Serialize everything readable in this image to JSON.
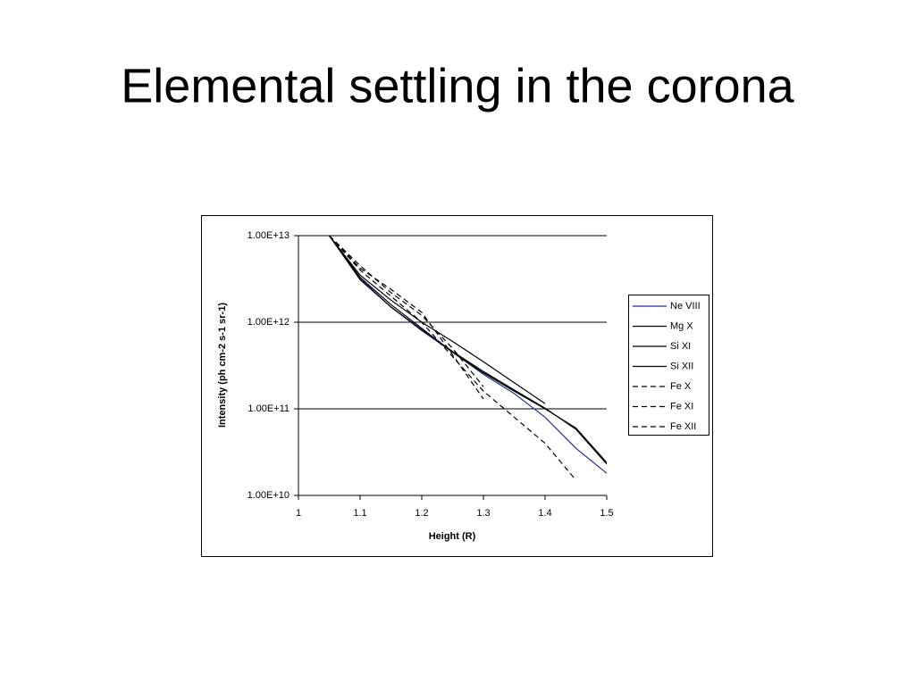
{
  "chart_data": {
    "type": "line",
    "title": "Elemental settling in the corona",
    "x_label": "Height (R)",
    "y_label": "Intensity (ph cm-2 s-1 sr-1)",
    "x": [
      1.05,
      1.1,
      1.15,
      1.2,
      1.25,
      1.3,
      1.35,
      1.4,
      1.45,
      1.5
    ],
    "series": [
      {
        "name": "Ne VIII",
        "color": "#1f2f9f",
        "linestyle": "solid",
        "values": [
          10000000000000.0,
          3200000000000.0,
          1500000000000.0,
          800000000000.0,
          450000000000.0,
          250000000000.0,
          150000000000.0,
          80000000000.0,
          35000000000.0,
          18000000000.0
        ]
      },
      {
        "name": "Mg X",
        "color": "#000000",
        "linestyle": "solid",
        "values": [
          10000000000000.0,
          3300000000000.0,
          1600000000000.0,
          850000000000.0,
          450000000000.0,
          260000000000.0,
          160000000000.0,
          100000000000.0,
          60000000000.0,
          24000000000.0
        ]
      },
      {
        "name": "Si XI",
        "color": "#000000",
        "linestyle": "solid",
        "values": [
          10000000000000.0,
          3100000000000.0,
          1500000000000.0,
          820000000000.0,
          460000000000.0,
          270000000000.0,
          165000000000.0,
          102000000000.0,
          58000000000.0,
          23000000000.0
        ]
      },
      {
        "name": "Si XII",
        "color": "#000000",
        "linestyle": "solid",
        "values": [
          10000000000000.0,
          3500000000000.0,
          1800000000000.0,
          1000000000000.0,
          600000000000.0,
          350000000000.0,
          200000000000.0,
          115000000000.0,
          null,
          null
        ]
      },
      {
        "name": "Fe X",
        "color": "#000000",
        "linestyle": "dashed",
        "values": [
          10000000000000.0,
          4000000000000.0,
          2000000000000.0,
          1000000000000.0,
          400000000000.0,
          160000000000.0,
          80000000000.0,
          40000000000.0,
          15000000000.0,
          null
        ]
      },
      {
        "name": "Fe XI",
        "color": "#000000",
        "linestyle": "dashed",
        "values": [
          10000000000000.0,
          4500000000000.0,
          2200000000000.0,
          1200000000000.0,
          500000000000.0,
          180000000000.0,
          null,
          null,
          null,
          null
        ]
      },
      {
        "name": "Fe XII",
        "color": "#000000",
        "linestyle": "dashed",
        "values": [
          10000000000000.0,
          4200000000000.0,
          2400000000000.0,
          1300000000000.0,
          420000000000.0,
          130000000000.0,
          null,
          null,
          null,
          null
        ]
      }
    ],
    "xlim": [
      1,
      1.5
    ],
    "xticks": [
      1,
      1.1,
      1.2,
      1.3,
      1.4,
      1.5
    ],
    "ylim": [
      10000000000.0,
      10000000000000.0
    ],
    "yscale": "log",
    "yticks": [
      {
        "value": 10000000000.0,
        "label": "1.00E+10"
      },
      {
        "value": 100000000000.0,
        "label": "1.00E+11"
      },
      {
        "value": 1000000000000.0,
        "label": "1.00E+12"
      },
      {
        "value": 10000000000000.0,
        "label": "1.00E+13"
      }
    ],
    "grid": true,
    "legend": "right"
  }
}
